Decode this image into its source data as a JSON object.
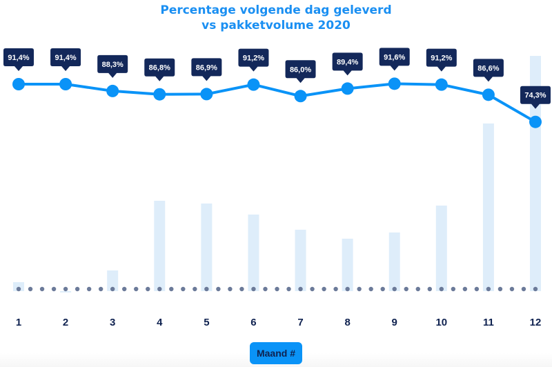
{
  "chart_data": {
    "type": "line+bar",
    "title": "Percentage volgende dag geleverd",
    "subtitle": "vs pakketvolume 2020",
    "xlabel": "Maand #",
    "categories": [
      "1",
      "2",
      "3",
      "4",
      "5",
      "6",
      "7",
      "8",
      "9",
      "10",
      "11",
      "12"
    ],
    "series": [
      {
        "type": "line",
        "values": [
          91.4,
          91.4,
          88.3,
          86.8,
          86.9,
          91.2,
          86.0,
          89.4,
          91.6,
          91.2,
          86.6,
          74.3
        ],
        "labels": [
          "91,4%",
          "91,4%",
          "88,3%",
          "86,8%",
          "86,9%",
          "91,2%",
          "86,0%",
          "89,4%",
          "91,6%",
          "91,2%",
          "86,6%",
          "74,3%"
        ]
      },
      {
        "type": "bar",
        "values": [
          13,
          -2,
          30,
          131,
          127,
          111,
          89,
          76,
          85,
          124,
          243,
          341
        ]
      }
    ],
    "grid": false,
    "colors": {
      "line": "#0a93f7",
      "bar": "#deedfa",
      "callout": "#13285a",
      "dots": "#6b7a99",
      "title": "#1a8ff2",
      "ticks": "#0f2250"
    }
  }
}
